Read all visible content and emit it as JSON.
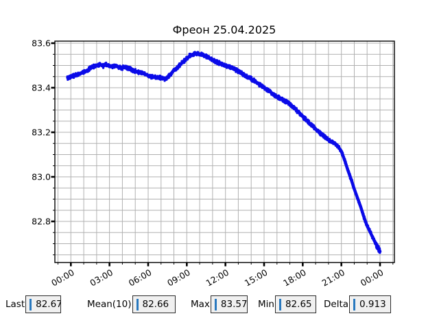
{
  "title": "Фреон 25.04.2025",
  "colors": {
    "line": "#0a0ae8",
    "grid": "#b0b0b0",
    "frame": "#000000",
    "tick": "#000000",
    "field_bg": "#f0f0f0",
    "field_border": "#2a2a2a",
    "caret_blue": "#2878be"
  },
  "status_bar": {
    "fields": [
      {
        "id": "last",
        "label": "Last",
        "value": "82.67"
      },
      {
        "id": "mean",
        "label": "Mean(10)",
        "value": "82.66"
      },
      {
        "id": "max",
        "label": "Max",
        "value": "83.57"
      },
      {
        "id": "min",
        "label": "Min",
        "value": "82.65"
      },
      {
        "id": "delta",
        "label": "Delta",
        "value": "0.913"
      }
    ]
  },
  "chart_data": {
    "type": "scatter",
    "title": "Фреон 25.04.2025",
    "xlabel": "",
    "ylabel": "",
    "x_unit": "time (hours over one day)",
    "x_tick_hours": [
      0,
      3,
      6,
      9,
      12,
      15,
      18,
      21,
      24
    ],
    "x_tick_labels": [
      "00:00",
      "03:00",
      "06:00",
      "09:00",
      "12:00",
      "15:00",
      "18:00",
      "21:00",
      "00:00"
    ],
    "y_ticks": [
      82.8,
      83.0,
      83.2,
      83.4,
      83.6
    ],
    "xlim_hours": [
      -1.22,
      25.12
    ],
    "ylim": [
      82.615,
      83.61
    ],
    "grid": true,
    "minor_grid_x_hours": 1,
    "minor_grid_y": 0.05,
    "noise_band": 0.01,
    "series": [
      {
        "name": "Фреон",
        "x_start_hour": -0.25,
        "x_step_hours": 0.25,
        "values": [
          83.445,
          83.45,
          83.455,
          83.46,
          83.465,
          83.47,
          83.478,
          83.487,
          83.495,
          83.5,
          83.505,
          83.498,
          83.503,
          83.5,
          83.495,
          83.5,
          83.492,
          83.49,
          83.493,
          83.487,
          83.48,
          83.475,
          83.47,
          83.468,
          83.462,
          83.455,
          83.45,
          83.448,
          83.446,
          83.445,
          83.44,
          83.445,
          83.46,
          83.48,
          83.49,
          83.505,
          83.518,
          83.53,
          83.545,
          83.55,
          83.555,
          83.55,
          83.548,
          83.54,
          83.532,
          83.525,
          83.518,
          83.51,
          83.505,
          83.5,
          83.495,
          83.49,
          83.482,
          83.475,
          83.465,
          83.455,
          83.447,
          83.44,
          83.43,
          83.42,
          83.41,
          83.4,
          83.39,
          83.38,
          83.37,
          83.36,
          83.352,
          83.345,
          83.336,
          83.327,
          83.313,
          83.3,
          83.285,
          83.27,
          83.256,
          83.243,
          83.229,
          83.215,
          83.202,
          83.19,
          83.177,
          83.165,
          83.158,
          83.15,
          83.135,
          83.115,
          83.075,
          83.03,
          82.99,
          82.945,
          82.905,
          82.865,
          82.82,
          82.78,
          82.75,
          82.72,
          82.69,
          82.665
        ],
        "stats": {
          "last": 82.67,
          "mean10": 82.66,
          "max": 83.57,
          "min": 82.65,
          "delta": 0.913
        }
      }
    ]
  }
}
